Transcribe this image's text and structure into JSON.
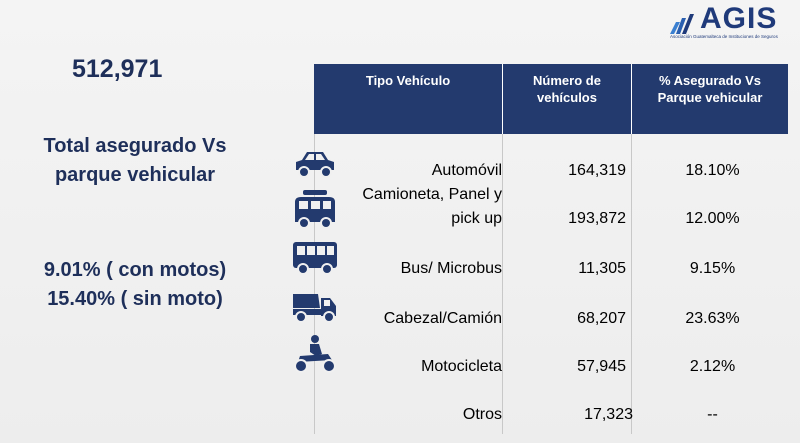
{
  "logo": {
    "text": "AGIS",
    "subtitle": "Asociación Guatemalteca de Instituciones de Seguros"
  },
  "summary": {
    "total": "512,971",
    "title_line1": "Total asegurado Vs",
    "title_line2": "parque vehicular",
    "pct_line1": "9.01% ( con motos)",
    "pct_line2": "15.40% ( sin moto)"
  },
  "table": {
    "headers": {
      "type": "Tipo Vehículo",
      "count_line1": "Número de",
      "count_line2": "vehículos",
      "pct_line1": "% Asegurado Vs",
      "pct_line2": "Parque vehicular"
    },
    "rows": [
      {
        "type": "Automóvil",
        "count": "164,319",
        "pct": "18.10%",
        "icon": "car-icon"
      },
      {
        "type_line1": "Camioneta, Panel y",
        "type_line2": "pick up",
        "count": "193,872",
        "pct": "12.00%",
        "icon": "van-icon"
      },
      {
        "type": "Bus/ Microbus",
        "count": "11,305",
        "pct": "9.15%",
        "icon": "bus-icon"
      },
      {
        "type": "Cabezal/Camión",
        "count": "68,207",
        "pct": "23.63%",
        "icon": "truck-icon"
      },
      {
        "type": "Motocicleta",
        "count": "57,945",
        "pct": "2.12%",
        "icon": "motorcycle-icon"
      },
      {
        "type": "Otros",
        "count": "17,323",
        "pct": "--"
      }
    ]
  },
  "colors": {
    "header_bg": "#233a6e",
    "brand": "#1f3a7a",
    "title_text": "#1e2f5a"
  }
}
